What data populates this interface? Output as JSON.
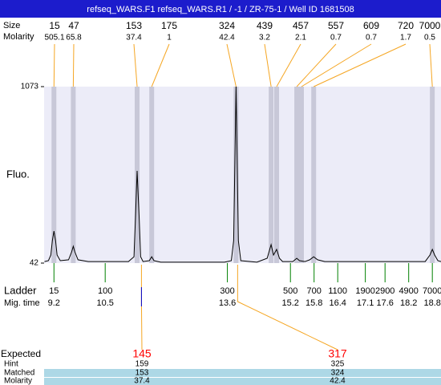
{
  "chart_data": {
    "type": "electropherogram",
    "title": "refseq_WARS.F1  refseq_WARS.R1 / -1 / ZR-75-1 / Well ID 1681508",
    "y_label": "Fluo.",
    "ylim": [
      42,
      1073
    ],
    "yticks": [
      42,
      1073
    ],
    "xlim": [
      8.95,
      19.02
    ],
    "peaks": {
      "labels": [
        "Size",
        "Molarity"
      ],
      "sizes": [
        15,
        47,
        153,
        175,
        324,
        439,
        457,
        557,
        609,
        720,
        7000
      ],
      "molarity": [
        505.1,
        65.8,
        37.4,
        1,
        42.4,
        3.2,
        2.1,
        0.7,
        0.7,
        1.7,
        0.5
      ],
      "times": [
        9.2,
        9.69,
        11.31,
        11.68,
        13.82,
        14.71,
        14.85,
        15.36,
        15.48,
        15.79,
        18.8
      ],
      "band_color": "#c8c8d8",
      "line_color": "#f5a623"
    },
    "trace": {
      "color": "#000000",
      "x": [
        8.96,
        9.06,
        9.12,
        9.16,
        9.2,
        9.24,
        9.28,
        9.36,
        9.57,
        9.65,
        9.69,
        9.73,
        9.81,
        10.07,
        11.09,
        11.23,
        11.27,
        11.31,
        11.36,
        11.4,
        11.46,
        11.62,
        11.68,
        11.74,
        11.91,
        13.53,
        13.7,
        13.76,
        13.82,
        13.88,
        13.94,
        14.35,
        14.61,
        14.71,
        14.77,
        14.85,
        14.92,
        15.0,
        15.26,
        15.36,
        15.43,
        15.57,
        15.69,
        15.79,
        15.89,
        16.07,
        18.62,
        18.74,
        18.8,
        18.86,
        18.94,
        19.02
      ],
      "y": [
        51,
        56,
        89,
        173,
        229,
        173,
        89,
        56,
        61,
        108,
        140,
        108,
        61,
        51,
        51,
        79,
        314,
        581,
        314,
        79,
        51,
        56,
        79,
        56,
        47,
        47,
        56,
        173,
        1073,
        173,
        56,
        47,
        70,
        150,
        89,
        122,
        70,
        51,
        51,
        70,
        56,
        51,
        61,
        79,
        61,
        51,
        51,
        89,
        122,
        89,
        56,
        51
      ]
    },
    "ladder": {
      "labels": [
        "Ladder",
        "Mig. time"
      ],
      "sizes": [
        15,
        100,
        300,
        500,
        700,
        1100,
        1900,
        2900,
        4900,
        7000
      ],
      "times": [
        9.2,
        10.5,
        13.6,
        15.2,
        15.8,
        16.4,
        17.1,
        17.6,
        18.2,
        18.8
      ],
      "color": "#008000"
    },
    "expected": {
      "labels": [
        "Expected",
        "Hint",
        "Matched",
        "Molarity"
      ],
      "expected": [
        145,
        317
      ],
      "hint": [
        159,
        325
      ],
      "matched": [
        153,
        324
      ],
      "molarity": [
        37.4,
        42.4
      ],
      "times": [
        11.42,
        13.86
      ],
      "expected_color": "#ff0000",
      "line_color": "#f5a623",
      "row_color": "#add8e6"
    }
  }
}
